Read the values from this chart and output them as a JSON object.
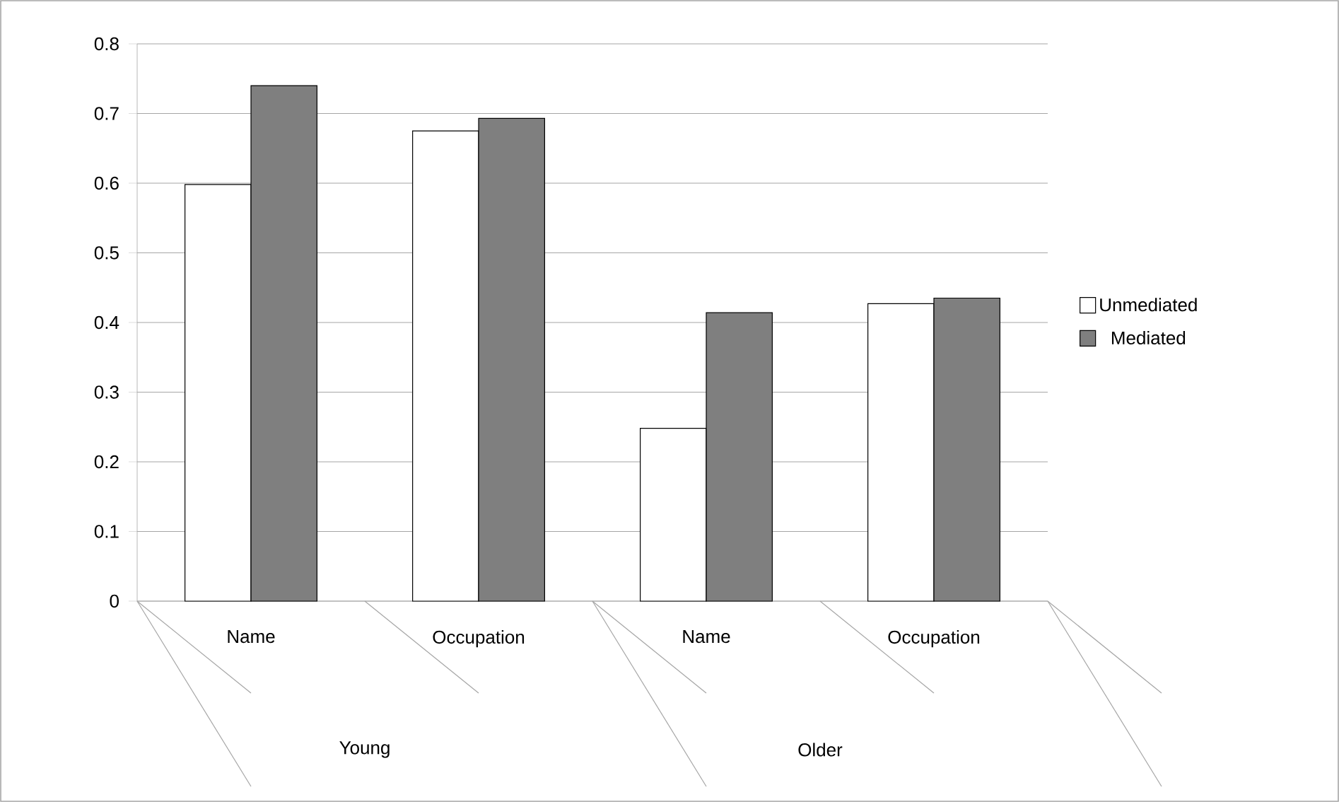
{
  "chart_data": {
    "type": "bar",
    "categories": [
      "Name",
      "Occupation",
      "Name",
      "Occupation"
    ],
    "series": [
      {
        "name": "Unmediated",
        "color": "#ffffff",
        "values": [
          0.598,
          0.675,
          0.248,
          0.427
        ]
      },
      {
        "name": "Mediated",
        "color": "#7f7f7f",
        "values": [
          0.74,
          0.693,
          0.414,
          0.435
        ]
      }
    ],
    "annotations": [
      "Young",
      "Older"
    ],
    "ylim": [
      0,
      0.8
    ],
    "yticks": [
      0,
      0.1,
      0.2,
      0.3,
      0.4,
      0.5,
      0.6,
      0.7,
      0.8
    ],
    "grid": "y",
    "legend": "right"
  }
}
